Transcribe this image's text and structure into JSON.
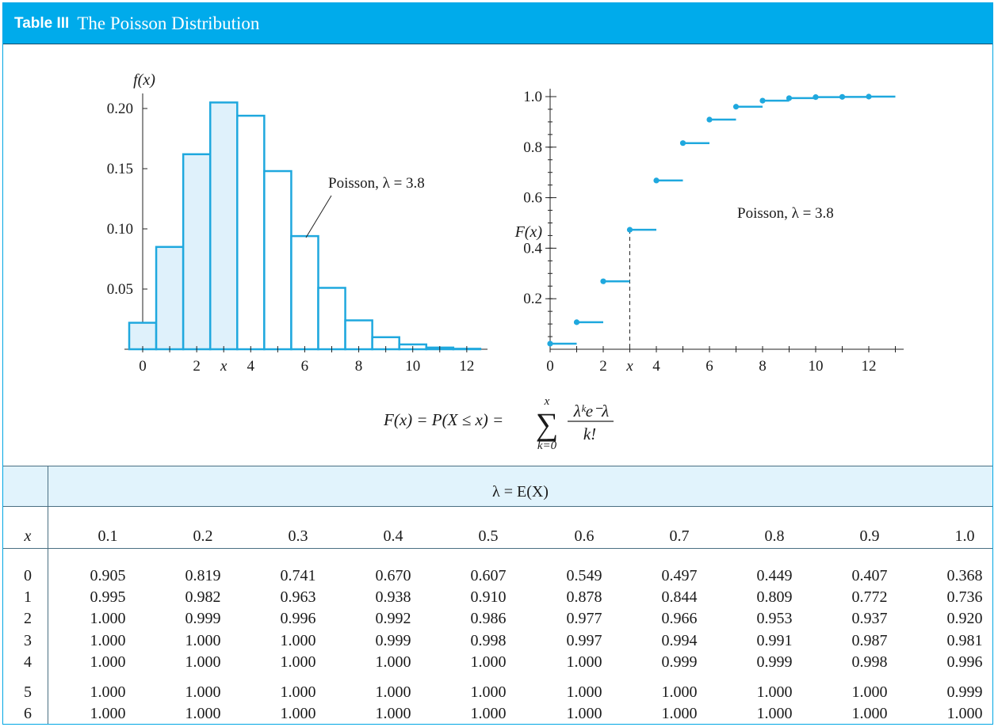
{
  "title": {
    "number": "Table III",
    "name": "The Poisson Distribution"
  },
  "pmf_chart": {
    "type": "bar",
    "ylabel": "f(x)",
    "yticks": [
      "0.05",
      "0.10",
      "0.15",
      "0.20"
    ],
    "xticks": [
      "0",
      "2",
      "x",
      "4",
      "6",
      "8",
      "10",
      "12"
    ],
    "label": "Poisson, λ = 3.8",
    "x": [
      0,
      1,
      2,
      3,
      4,
      5,
      6,
      7,
      8,
      9,
      10,
      11,
      12
    ],
    "values": [
      0.022,
      0.085,
      0.162,
      0.205,
      0.194,
      0.148,
      0.094,
      0.051,
      0.024,
      0.01,
      0.004,
      0.0014,
      0.0004
    ],
    "shaded_through": 3,
    "ylim": [
      0,
      0.21
    ]
  },
  "cdf_chart": {
    "type": "step",
    "ylabel": "F(x)",
    "yticks": [
      "0.2",
      "0.4",
      "0.6",
      "0.8",
      "1.0"
    ],
    "xticks": [
      "0",
      "2",
      "x",
      "4",
      "6",
      "8",
      "10",
      "12"
    ],
    "label": "Poisson, λ = 3.8",
    "x": [
      0,
      1,
      2,
      3,
      4,
      5,
      6,
      7,
      8,
      9,
      10,
      11,
      12
    ],
    "values": [
      0.022,
      0.107,
      0.269,
      0.473,
      0.668,
      0.816,
      0.909,
      0.96,
      0.984,
      0.994,
      0.998,
      0.999,
      1.0
    ],
    "marked_x": 3,
    "ylim": [
      0,
      1.0
    ]
  },
  "formula": {
    "lhs": "F(x) = P(X ≤ x) =",
    "sum_top": "x",
    "sum_bottom": "k=0",
    "numerator": "λᵏe⁻λ",
    "denominator": "k!"
  },
  "table": {
    "lambda_header": "λ = E(X)",
    "x_header": "x",
    "columns": [
      "0.1",
      "0.2",
      "0.3",
      "0.4",
      "0.5",
      "0.6",
      "0.7",
      "0.8",
      "0.9",
      "1.0"
    ],
    "rows": [
      {
        "x": "0",
        "values": [
          "0.905",
          "0.819",
          "0.741",
          "0.670",
          "0.607",
          "0.549",
          "0.497",
          "0.449",
          "0.407",
          "0.368"
        ]
      },
      {
        "x": "1",
        "values": [
          "0.995",
          "0.982",
          "0.963",
          "0.938",
          "0.910",
          "0.878",
          "0.844",
          "0.809",
          "0.772",
          "0.736"
        ]
      },
      {
        "x": "2",
        "values": [
          "1.000",
          "0.999",
          "0.996",
          "0.992",
          "0.986",
          "0.977",
          "0.966",
          "0.953",
          "0.937",
          "0.920"
        ]
      },
      {
        "x": "3",
        "values": [
          "1.000",
          "1.000",
          "1.000",
          "0.999",
          "0.998",
          "0.997",
          "0.994",
          "0.991",
          "0.987",
          "0.981"
        ]
      },
      {
        "x": "4",
        "values": [
          "1.000",
          "1.000",
          "1.000",
          "1.000",
          "1.000",
          "1.000",
          "0.999",
          "0.999",
          "0.998",
          "0.996"
        ]
      },
      {
        "x": "5",
        "values": [
          "1.000",
          "1.000",
          "1.000",
          "1.000",
          "1.000",
          "1.000",
          "1.000",
          "1.000",
          "1.000",
          "0.999"
        ]
      },
      {
        "x": "6",
        "values": [
          "1.000",
          "1.000",
          "1.000",
          "1.000",
          "1.000",
          "1.000",
          "1.000",
          "1.000",
          "1.000",
          "1.000"
        ]
      }
    ]
  },
  "colors": {
    "accent": "#00abeb",
    "shade": "#dff1fb",
    "line": "#1fa8de"
  }
}
